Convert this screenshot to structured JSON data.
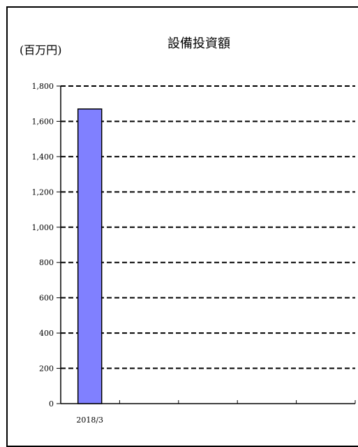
{
  "chart_data": {
    "type": "bar",
    "title": "設備投資額",
    "unit_label": "(百万円)",
    "categories": [
      "2018/3",
      "",
      "",
      "",
      ""
    ],
    "values": [
      1670,
      null,
      null,
      null,
      null
    ],
    "y_ticks": [
      "0",
      "200",
      "400",
      "600",
      "800",
      "1,000",
      "1,200",
      "1,400",
      "1,600",
      "1,800"
    ],
    "ylim": [
      0,
      1800
    ],
    "grid": true,
    "grid_style": "dashed",
    "bar_color": "#8080ff",
    "bar_edge_color": "#000000"
  }
}
